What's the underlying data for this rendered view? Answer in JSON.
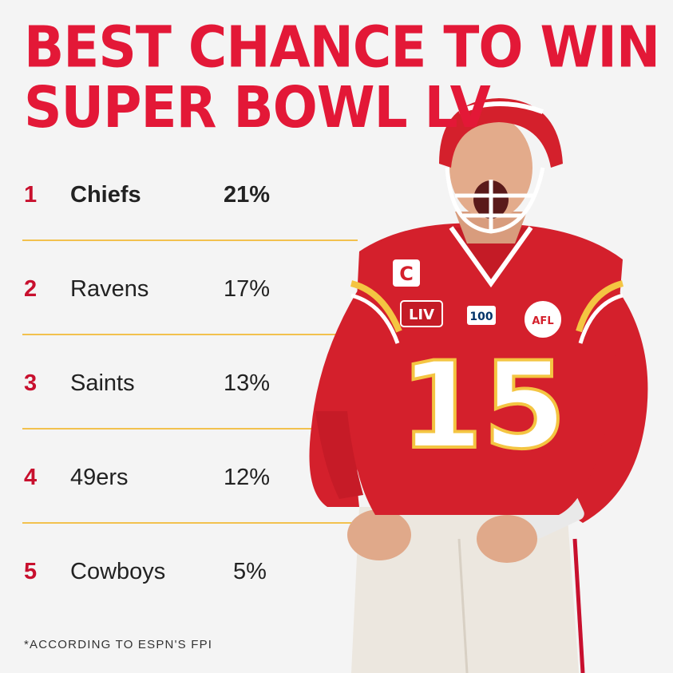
{
  "title": {
    "line1": "BEST CHANCE TO WIN",
    "line2": "SUPER BOWL LV"
  },
  "rankings": [
    {
      "rank": "1",
      "team": "Chiefs",
      "pct": "21%"
    },
    {
      "rank": "2",
      "team": "Ravens",
      "pct": "17%"
    },
    {
      "rank": "3",
      "team": "Saints",
      "pct": "13%"
    },
    {
      "rank": "4",
      "team": "49ers",
      "pct": "12%"
    },
    {
      "rank": "5",
      "team": "Cowboys",
      "pct": "5%"
    }
  ],
  "footnote": "*ACCORDING TO ESPN'S FPI",
  "player": {
    "jersey_number": "15",
    "captain_patch": "C",
    "super_bowl_patch": "LIV",
    "nfl_100_patch": "100",
    "afl_patch": "AFL"
  },
  "colors": {
    "title_red": "#e31837",
    "rank_red": "#c8102e",
    "divider_gold": "#f2c14e",
    "jersey_red": "#d4202c",
    "background": "#f4f4f4"
  }
}
